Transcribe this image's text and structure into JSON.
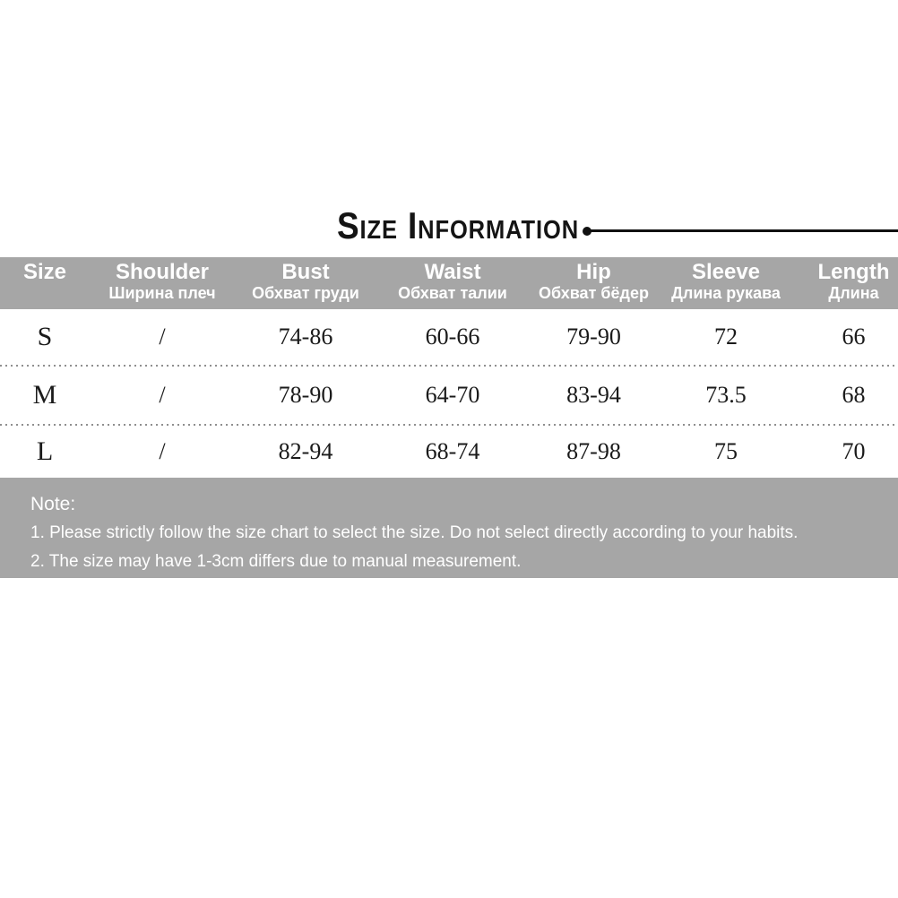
{
  "title": {
    "text": "Size Information"
  },
  "table": {
    "columns": [
      {
        "en": "Size",
        "ru": ""
      },
      {
        "en": "Shoulder",
        "ru": "Ширина плеч"
      },
      {
        "en": "Bust",
        "ru": "Обхват груди"
      },
      {
        "en": "Waist",
        "ru": "Обхват талии"
      },
      {
        "en": "Hip",
        "ru": "Обхват бёдер"
      },
      {
        "en": "Sleeve",
        "ru": "Длина рукава"
      },
      {
        "en": "Length",
        "ru": "Длина"
      }
    ],
    "rows": [
      {
        "size": "S",
        "values": [
          "/",
          "74-86",
          "60-66",
          "79-90",
          "72",
          "66"
        ]
      },
      {
        "size": "M",
        "values": [
          "/",
          "78-90",
          "64-70",
          "83-94",
          "73.5",
          "68"
        ]
      },
      {
        "size": "L",
        "values": [
          "/",
          "82-94",
          "68-74",
          "87-98",
          "75",
          "70"
        ]
      }
    ]
  },
  "note": {
    "heading": "Note:",
    "lines": [
      "1. Please strictly follow the size chart to select the size. Do not select directly according to your habits.",
      "2. The size may have 1-3cm differs due to manual measurement."
    ]
  },
  "colors": {
    "band_gray": "#a6a6a6",
    "text_white": "#ffffff",
    "text_black": "#141414",
    "dotted_separator": "#8f8f8f",
    "rule_black": "#111111"
  }
}
